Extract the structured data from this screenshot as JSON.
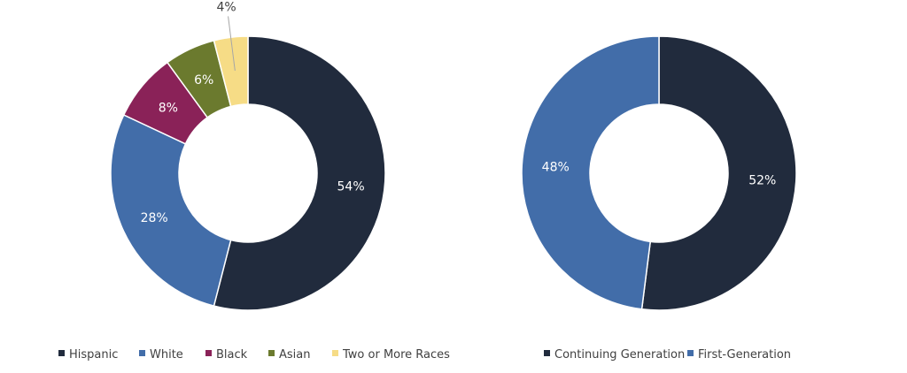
{
  "chart_data": [
    {
      "type": "pie",
      "variant": "donut",
      "categories": [
        "Hispanic",
        "White",
        "Black",
        "Asian",
        "Two or More Races"
      ],
      "values": [
        54,
        28,
        8,
        6,
        4
      ],
      "labels": [
        "54%",
        "28%",
        "8%",
        "6%",
        "4%"
      ],
      "colors": [
        "#212B3D",
        "#426DA9",
        "#8A2258",
        "#6B7A2E",
        "#F6DC86"
      ],
      "legend": "bottom"
    },
    {
      "type": "pie",
      "variant": "donut",
      "categories": [
        "Continuing Generation",
        "First-Generation"
      ],
      "values": [
        52,
        48
      ],
      "labels": [
        "52%",
        "48%"
      ],
      "colors": [
        "#212B3D",
        "#426DA9"
      ],
      "legend": "bottom"
    }
  ]
}
